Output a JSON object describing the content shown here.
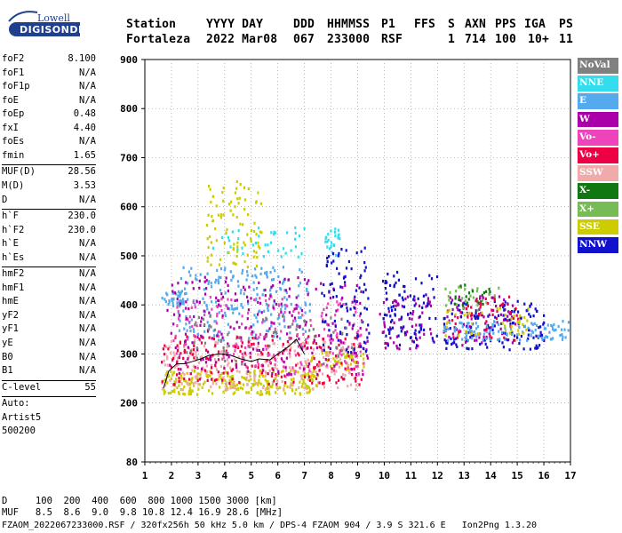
{
  "logo": {
    "top_text": "Lowell",
    "bottom_text": "DIGISONDE"
  },
  "header": {
    "labels": [
      "Station",
      "YYYY DAY",
      "DDD",
      "HHMMSS",
      "P1",
      "FFS",
      "S",
      "AXN",
      "PPS",
      "IGA",
      "PS"
    ],
    "values": [
      "Fortaleza",
      "2022 Mar08",
      "067",
      "233000",
      "RSF",
      "1",
      "714",
      "100",
      "10+",
      "11"
    ]
  },
  "params": [
    {
      "name": "foF2",
      "value": "8.100"
    },
    {
      "name": "foF1",
      "value": "N/A"
    },
    {
      "name": "foF1p",
      "value": "N/A"
    },
    {
      "name": "foE",
      "value": "N/A"
    },
    {
      "name": "foEp",
      "value": "0.48"
    },
    {
      "name": "fxI",
      "value": "4.40"
    },
    {
      "name": "foEs",
      "value": "N/A"
    },
    {
      "name": "fmin",
      "value": "1.65"
    },
    {
      "sep": true
    },
    {
      "name": "MUF(D)",
      "value": "28.56"
    },
    {
      "name": "M(D)",
      "value": "3.53"
    },
    {
      "name": "D",
      "value": "N/A"
    },
    {
      "sep": true
    },
    {
      "name": "h`F",
      "value": "230.0"
    },
    {
      "name": "h`F2",
      "value": "230.0"
    },
    {
      "name": "h`E",
      "value": "N/A"
    },
    {
      "name": "h`Es",
      "value": "N/A"
    },
    {
      "sep": true
    },
    {
      "name": "hmF2",
      "value": "N/A"
    },
    {
      "name": "hmF1",
      "value": "N/A"
    },
    {
      "name": "hmE",
      "value": "N/A"
    },
    {
      "name": "yF2",
      "value": "N/A"
    },
    {
      "name": "yF1",
      "value": "N/A"
    },
    {
      "name": "yE",
      "value": "N/A"
    },
    {
      "name": "B0",
      "value": "N/A"
    },
    {
      "name": "B1",
      "value": "N/A"
    },
    {
      "sep": true
    },
    {
      "name": "C-level",
      "value": "55"
    },
    {
      "sep": true
    },
    {
      "name": "Auto:",
      "value": ""
    },
    {
      "name": "Artist5",
      "value": ""
    },
    {
      "name": "500200",
      "value": ""
    }
  ],
  "legend": [
    {
      "label": "NoVal",
      "color": "#808080"
    },
    {
      "label": "NNE",
      "color": "#33ddee"
    },
    {
      "label": "E",
      "color": "#55aaee"
    },
    {
      "label": "W",
      "color": "#aa00aa"
    },
    {
      "label": "Vo-",
      "color": "#ee44bb"
    },
    {
      "label": "Vo+",
      "color": "#ee0044"
    },
    {
      "label": "SSW",
      "color": "#f0aaaa"
    },
    {
      "label": "X-",
      "color": "#117711"
    },
    {
      "label": "X+",
      "color": "#77bb55"
    },
    {
      "label": "SSE",
      "color": "#cccc00"
    },
    {
      "label": "NNW",
      "color": "#1111cc"
    }
  ],
  "footer": {
    "line1": "D     100  200  400  600  800 1000 1500 3000 [km]",
    "line2": "MUF   8.5  8.6  9.0  9.8 10.8 12.4 16.9 28.6 [MHz]",
    "line3": "FZAOM_2022067233000.RSF / 320fx256h 50 kHz 5.0 km / DPS-4 FZAOM 904 / 3.9 S 321.6 E   Ion2Png 1.3.20"
  },
  "chart_data": {
    "type": "scatter",
    "title": "",
    "xlabel": "",
    "ylabel": "",
    "xlim": [
      1,
      17
    ],
    "ylim": [
      80,
      900
    ],
    "xticks": [
      "1",
      "2",
      "3",
      "4",
      "5",
      "6",
      "7",
      "8",
      "9",
      "10",
      "11",
      "12",
      "13",
      "14",
      "15",
      "16",
      "17"
    ],
    "yticks": [
      "80",
      "200",
      "300",
      "400",
      "500",
      "600",
      "700",
      "800",
      "900"
    ],
    "grid": true,
    "trace": {
      "name": "",
      "x": [
        1.7,
        1.9,
        2.2,
        2.5,
        2.8,
        3.1,
        3.4,
        3.8,
        4.2,
        4.6,
        5.0,
        5.3,
        5.7,
        6.0,
        6.4,
        6.7,
        7.0
      ],
      "y": [
        230,
        265,
        280,
        280,
        285,
        290,
        297,
        300,
        298,
        290,
        285,
        290,
        288,
        300,
        315,
        330,
        300
      ]
    },
    "clusters": [
      {
        "series": "E",
        "x": [
          1.6,
          2.6
        ],
        "y": [
          400,
          430
        ],
        "n": 40
      },
      {
        "series": "E",
        "x": [
          2.2,
          7.2
        ],
        "y": [
          330,
          480
        ],
        "n": 220
      },
      {
        "series": "NNE",
        "x": [
          3.5,
          7.0
        ],
        "y": [
          500,
          560
        ],
        "n": 40
      },
      {
        "series": "NNE",
        "x": [
          7.7,
          8.3
        ],
        "y": [
          500,
          560
        ],
        "n": 25
      },
      {
        "series": "SSE",
        "x": [
          3.3,
          5.4
        ],
        "y": [
          480,
          660
        ],
        "n": 90
      },
      {
        "series": "SSE",
        "x": [
          1.6,
          7.5
        ],
        "y": [
          220,
          270
        ],
        "n": 260
      },
      {
        "series": "SSE",
        "x": [
          7.0,
          9.2
        ],
        "y": [
          270,
          310
        ],
        "n": 60
      },
      {
        "series": "SSW",
        "x": [
          1.6,
          9.0
        ],
        "y": [
          230,
          330
        ],
        "n": 260
      },
      {
        "series": "Vo+",
        "x": [
          1.6,
          9.2
        ],
        "y": [
          240,
          340
        ],
        "n": 200
      },
      {
        "series": "Vo-",
        "x": [
          2.0,
          9.2
        ],
        "y": [
          260,
          420
        ],
        "n": 200
      },
      {
        "series": "W",
        "x": [
          1.8,
          9.5
        ],
        "y": [
          260,
          460
        ],
        "n": 220
      },
      {
        "series": "W",
        "x": [
          9.8,
          11.8
        ],
        "y": [
          310,
          420
        ],
        "n": 70
      },
      {
        "series": "W",
        "x": [
          12.2,
          14.8
        ],
        "y": [
          320,
          420
        ],
        "n": 80
      },
      {
        "series": "NNW",
        "x": [
          7.6,
          9.4
        ],
        "y": [
          300,
          520
        ],
        "n": 90
      },
      {
        "series": "NNW",
        "x": [
          9.9,
          12.0
        ],
        "y": [
          320,
          470
        ],
        "n": 90
      },
      {
        "series": "NNW",
        "x": [
          12.2,
          16.0
        ],
        "y": [
          310,
          410
        ],
        "n": 140
      },
      {
        "series": "E",
        "x": [
          12.2,
          16.9
        ],
        "y": [
          330,
          370
        ],
        "n": 110
      },
      {
        "series": "X+",
        "x": [
          12.2,
          14.5
        ],
        "y": [
          390,
          440
        ],
        "n": 30
      },
      {
        "series": "X-",
        "x": [
          12.5,
          14.0
        ],
        "y": [
          400,
          450
        ],
        "n": 20
      },
      {
        "series": "Vo+",
        "x": [
          12.5,
          15.0
        ],
        "y": [
          330,
          420
        ],
        "n": 50
      },
      {
        "series": "SSE",
        "x": [
          12.2,
          15.5
        ],
        "y": [
          340,
          400
        ],
        "n": 40
      },
      {
        "series": "NoVal",
        "x": [
          2.5,
          9.2
        ],
        "y": [
          280,
          380
        ],
        "n": 60
      }
    ]
  }
}
